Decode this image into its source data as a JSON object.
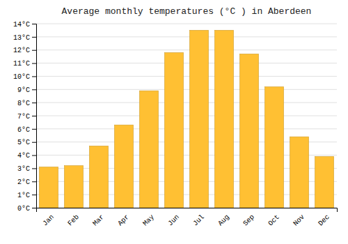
{
  "chart_data": {
    "type": "bar",
    "title": "Average monthly temperatures (°C ) in Aberdeen",
    "categories": [
      "Jan",
      "Feb",
      "Mar",
      "Apr",
      "May",
      "Jun",
      "Jul",
      "Aug",
      "Sep",
      "Oct",
      "Nov",
      "Dec"
    ],
    "values": [
      3.1,
      3.2,
      4.7,
      6.3,
      8.9,
      11.8,
      13.5,
      13.5,
      11.7,
      9.2,
      5.4,
      3.9
    ],
    "color": "#FFC033",
    "ylim": [
      0,
      14
    ],
    "yticks": [
      {
        "value": 0,
        "label": "0°C"
      },
      {
        "value": 1,
        "label": "1°C"
      },
      {
        "value": 2,
        "label": "2°C"
      },
      {
        "value": 3,
        "label": "3°C"
      },
      {
        "value": 4,
        "label": "4°C"
      },
      {
        "value": 5,
        "label": "5°C"
      },
      {
        "value": 6,
        "label": "6°C"
      },
      {
        "value": 7,
        "label": "7°C"
      },
      {
        "value": 8,
        "label": "8°C"
      },
      {
        "value": 9,
        "label": "9°C"
      },
      {
        "value": 10,
        "label": "10°C"
      },
      {
        "value": 11,
        "label": "11°C"
      },
      {
        "value": 12,
        "label": "12°C"
      },
      {
        "value": 13,
        "label": "13°C"
      },
      {
        "value": 14,
        "label": "14°C"
      }
    ],
    "grid": true
  }
}
